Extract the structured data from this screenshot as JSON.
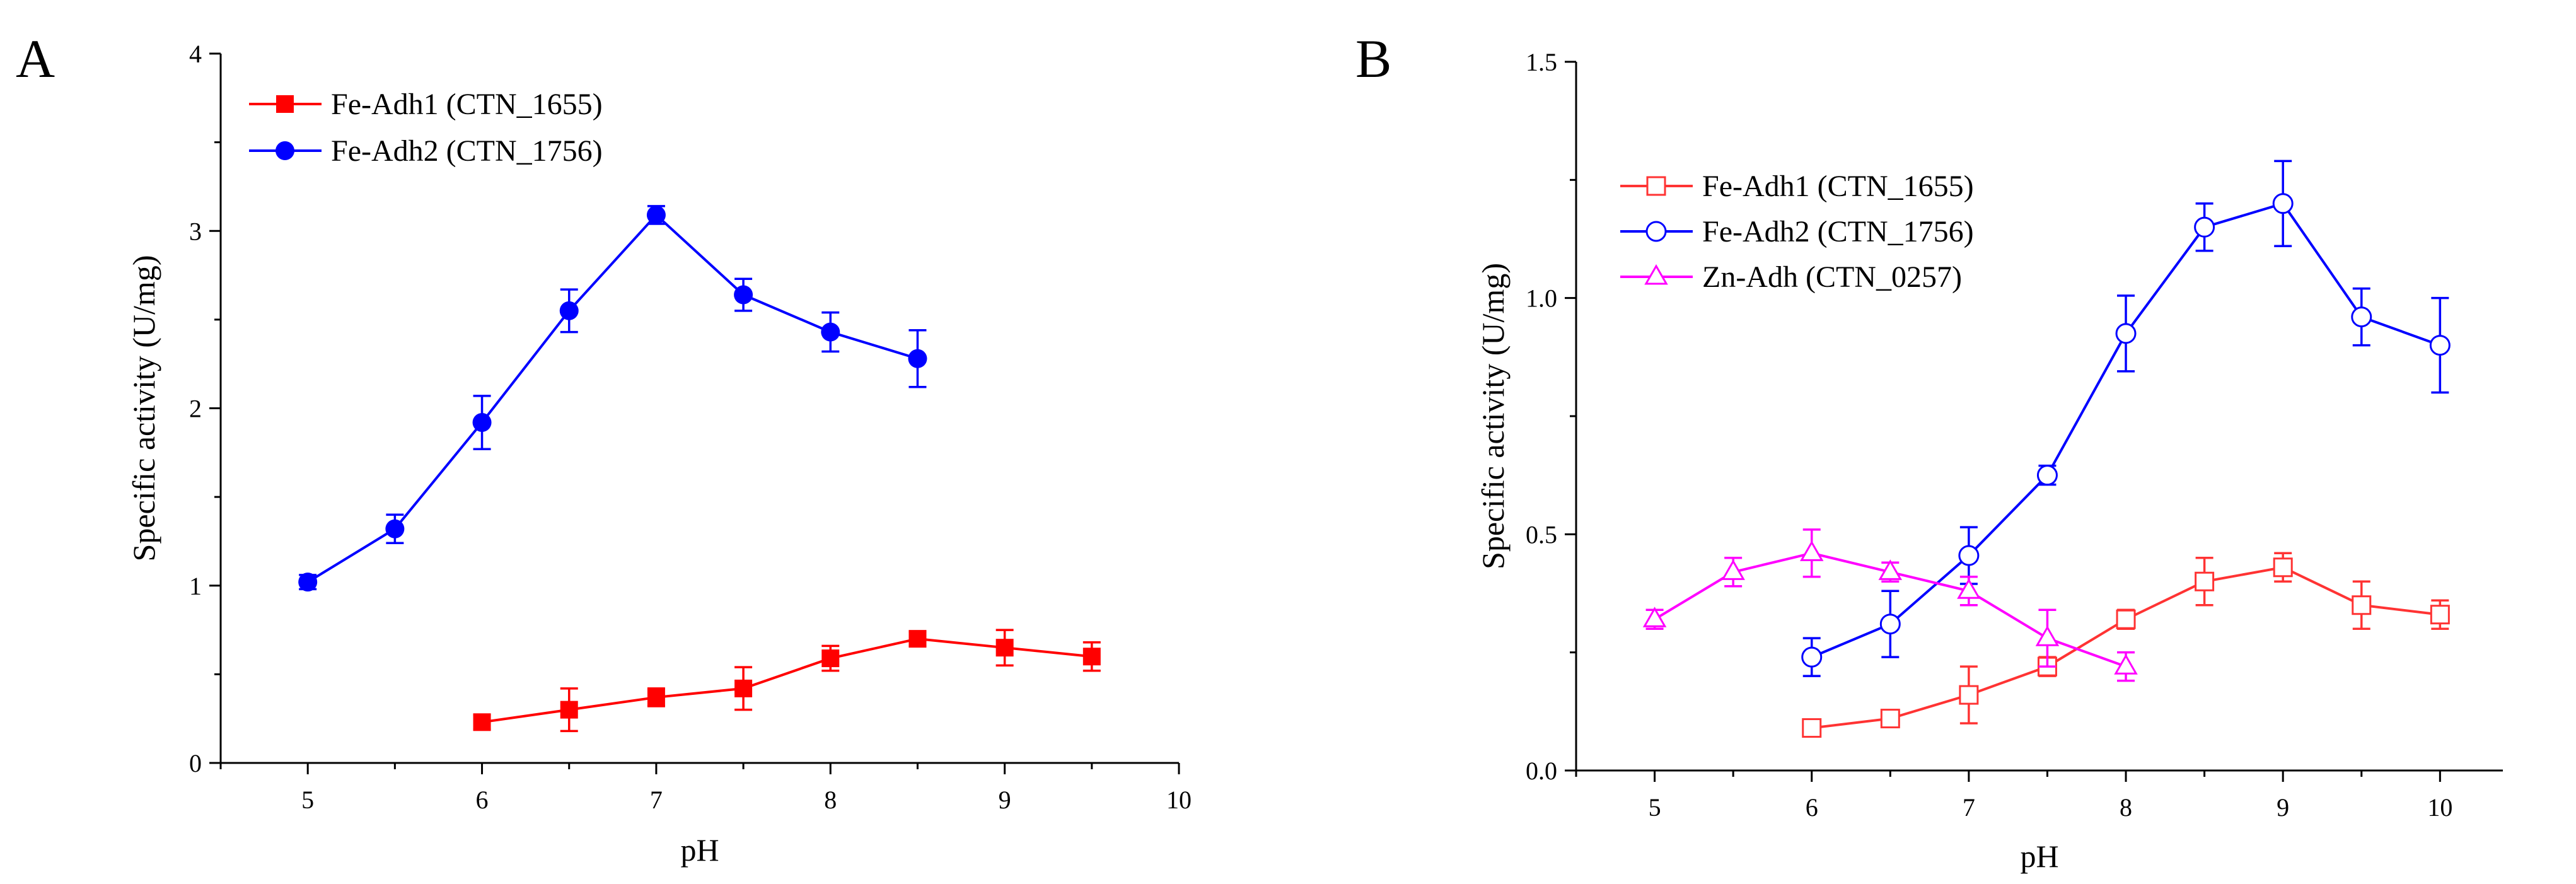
{
  "chart_data": [
    {
      "type": "line",
      "panel_label": "A",
      "xlabel": "pH",
      "ylabel": "Specific activity (U/mg)",
      "xlim": [
        4.5,
        10
      ],
      "ylim": [
        0,
        4
      ],
      "xticks": [
        5,
        6,
        7,
        8,
        9,
        10
      ],
      "yticks": [
        0,
        1,
        2,
        3,
        4
      ],
      "legend_position": "top-left",
      "series": [
        {
          "name": "Fe-Adh1 (CTN_1655)",
          "color": "#ff0000",
          "marker": "square-filled",
          "x": [
            6,
            6.5,
            7,
            7.5,
            8,
            8.5,
            9,
            9.5
          ],
          "y": [
            0.23,
            0.3,
            0.37,
            0.42,
            0.59,
            0.7,
            0.65,
            0.6
          ],
          "err": [
            0.04,
            0.12,
            0.05,
            0.12,
            0.07,
            0.04,
            0.1,
            0.08
          ]
        },
        {
          "name": "Fe-Adh2 (CTN_1756)",
          "color": "#0000ff",
          "marker": "circle-filled",
          "x": [
            5,
            5.5,
            6,
            6.5,
            7,
            7.5,
            8,
            8.5
          ],
          "y": [
            1.02,
            1.32,
            1.92,
            2.55,
            3.09,
            2.64,
            2.43,
            2.28
          ],
          "err": [
            0.04,
            0.08,
            0.15,
            0.12,
            0.05,
            0.09,
            0.11,
            0.16
          ]
        }
      ]
    },
    {
      "type": "line",
      "panel_label": "B",
      "xlabel": "pH",
      "ylabel": "Specific activity (U/mg)",
      "xlim": [
        4.5,
        10.4
      ],
      "ylim": [
        0,
        1.5
      ],
      "xticks": [
        5,
        6,
        7,
        8,
        9,
        10
      ],
      "yticks": [
        0.0,
        0.5,
        1.0,
        1.5
      ],
      "ytick_labels": [
        "0.0",
        "0.5",
        "1.0",
        "1.5"
      ],
      "legend_position": "top-left",
      "series": [
        {
          "name": "Fe-Adh1 (CTN_1655)",
          "color": "#ff3333",
          "marker": "square-open",
          "x": [
            6,
            6.5,
            7,
            7.5,
            8,
            8.5,
            9,
            9.5,
            10
          ],
          "y": [
            0.09,
            0.11,
            0.16,
            0.22,
            0.32,
            0.4,
            0.43,
            0.35,
            0.33
          ],
          "err": [
            0.01,
            0.01,
            0.06,
            0.02,
            0.02,
            0.05,
            0.03,
            0.05,
            0.03
          ]
        },
        {
          "name": "Fe-Adh2 (CTN_1756)",
          "color": "#0000ff",
          "marker": "circle-open",
          "x": [
            6,
            6.5,
            7,
            7.5,
            8,
            8.5,
            9,
            9.5,
            10
          ],
          "y": [
            0.24,
            0.31,
            0.455,
            0.625,
            0.925,
            1.15,
            1.2,
            0.96,
            0.9
          ],
          "err": [
            0.04,
            0.07,
            0.06,
            0.02,
            0.08,
            0.05,
            0.09,
            0.06,
            0.1
          ]
        },
        {
          "name": "Zn-Adh (CTN_0257)",
          "color": "#ff00ff",
          "marker": "triangle-open",
          "x": [
            5,
            5.5,
            6,
            6.5,
            7,
            7.5,
            8
          ],
          "y": [
            0.32,
            0.42,
            0.46,
            0.42,
            0.38,
            0.28,
            0.22
          ],
          "err": [
            0.02,
            0.03,
            0.05,
            0.02,
            0.03,
            0.06,
            0.03
          ]
        }
      ]
    }
  ]
}
